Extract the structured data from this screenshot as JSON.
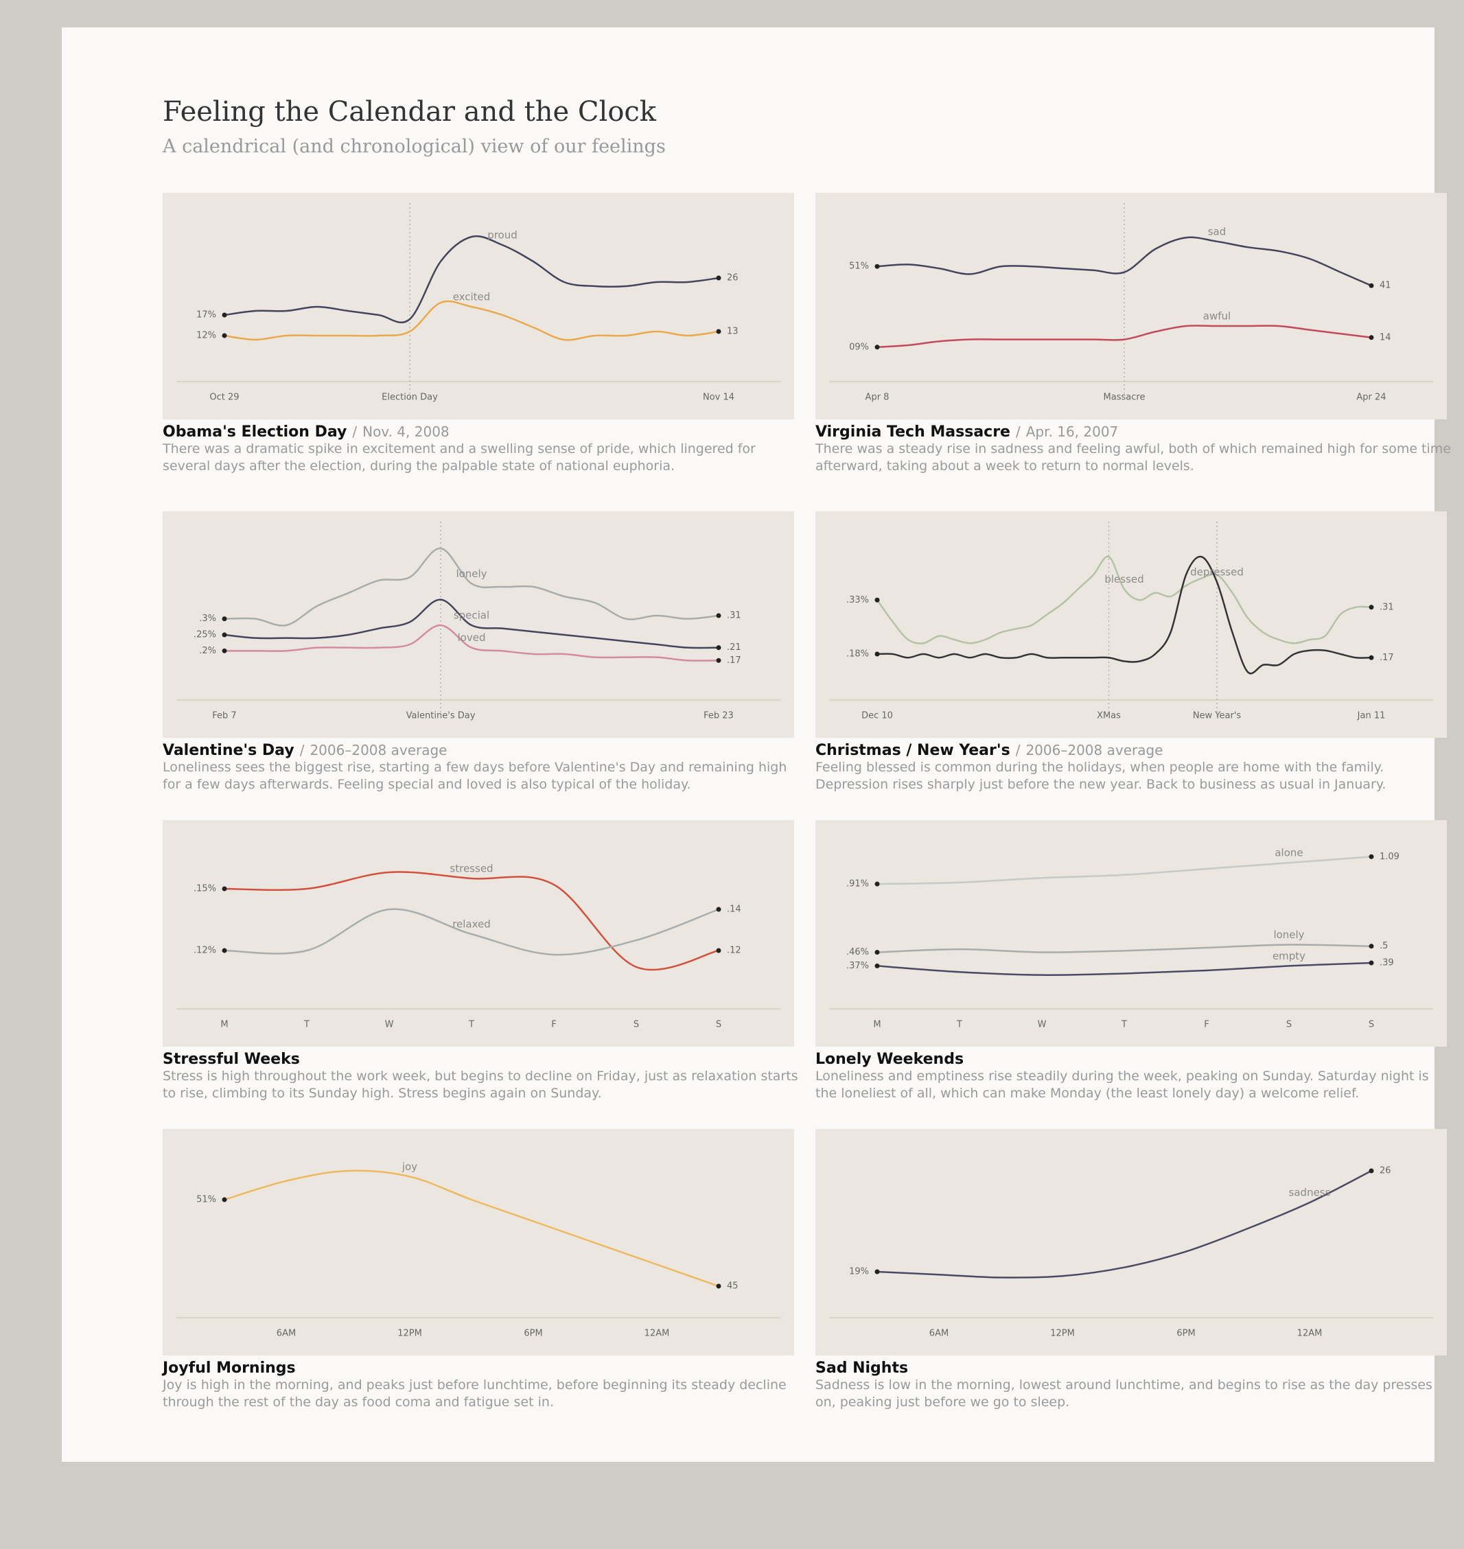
{
  "title": "Feeling the Calendar and the Clock",
  "subtitle": "A calendrical (and chronological) view of our feelings",
  "chart_data": [
    {
      "type": "line",
      "title": "Obama's Election Day",
      "separator": "/",
      "date": "Nov. 4, 2008",
      "description": "There was a dramatic spike in excitement and a swelling sense of pride, which lingered for several days after the election, during the palpable state of national euphoria.",
      "event_lines": true,
      "categories": [
        "Oct 29",
        null,
        null,
        null,
        null,
        null,
        "Election Day",
        null,
        null,
        null,
        null,
        null,
        null,
        null,
        null,
        null,
        "Nov 14"
      ],
      "ylim": [
        5,
        40
      ],
      "series": [
        {
          "name": "proud",
          "color": "#44445e",
          "values": [
            17,
            18,
            18,
            19,
            18,
            17,
            16,
            30,
            36,
            34,
            30,
            25,
            24,
            24,
            25,
            25,
            26
          ],
          "value_labels": [
            "17%",
            null,
            null,
            null,
            null,
            null,
            null,
            null,
            null,
            null,
            null,
            null,
            null,
            null,
            null,
            null,
            "26"
          ]
        },
        {
          "name": "excited",
          "color": "#eaa94c",
          "values": [
            12,
            11,
            12,
            12,
            12,
            12,
            13,
            20,
            19,
            17,
            14,
            11,
            12,
            12,
            13,
            12,
            13
          ],
          "value_labels": [
            "12%",
            null,
            null,
            null,
            null,
            null,
            null,
            null,
            null,
            null,
            null,
            null,
            null,
            null,
            null,
            null,
            "13"
          ]
        }
      ]
    },
    {
      "type": "line",
      "title": "Virginia Tech Massacre",
      "separator": "/",
      "date": "Apr. 16, 2007",
      "description": "There was a steady rise in sadness and feeling awful, both of which remained high for some time afterward, taking about a week to return to normal levels.",
      "event_lines": true,
      "categories": [
        "Apr 8",
        null,
        null,
        null,
        null,
        null,
        null,
        null,
        "Massacre",
        null,
        null,
        null,
        null,
        null,
        null,
        null,
        "Apr 24"
      ],
      "ylim": [
        0,
        75
      ],
      "series": [
        {
          "name": "sad",
          "color": "#44445e",
          "values": [
            51,
            52,
            50,
            47,
            51,
            51,
            50,
            49,
            48,
            60,
            66,
            64,
            61,
            59,
            55,
            48,
            41
          ],
          "value_labels": [
            "51%",
            null,
            null,
            null,
            null,
            null,
            null,
            null,
            null,
            null,
            null,
            null,
            null,
            null,
            null,
            null,
            "41"
          ]
        },
        {
          "name": "awful",
          "color": "#c24a5c",
          "values": [
            9,
            10,
            12,
            13,
            13,
            13,
            13,
            13,
            13,
            17,
            20,
            20,
            20,
            20,
            18,
            16,
            14
          ],
          "value_labels": [
            "09%",
            null,
            null,
            null,
            null,
            null,
            null,
            null,
            null,
            null,
            null,
            null,
            null,
            null,
            null,
            null,
            "14"
          ]
        }
      ]
    },
    {
      "type": "line",
      "title": "Valentine's Day",
      "separator": "/",
      "date": "2006–2008 average",
      "description": "Loneliness sees the biggest rise, starting a few days before Valentine's Day and remaining high for a few days afterwards. Feeling special and loved is also typical of the holiday.",
      "event_lines": true,
      "categories": [
        "Feb 7",
        null,
        null,
        null,
        null,
        null,
        null,
        "Valentine's Day",
        null,
        null,
        null,
        null,
        null,
        null,
        null,
        null,
        "Feb 23"
      ],
      "ylim": [
        0.1,
        0.55
      ],
      "series": [
        {
          "name": "lonely",
          "color": "#a8acac",
          "values": [
            0.3,
            0.3,
            0.28,
            0.34,
            0.38,
            0.42,
            0.43,
            0.52,
            0.41,
            0.4,
            0.4,
            0.37,
            0.35,
            0.3,
            0.31,
            0.3,
            0.31
          ],
          "value_labels": [
            ".3%",
            null,
            null,
            null,
            null,
            null,
            null,
            null,
            null,
            null,
            null,
            null,
            null,
            null,
            null,
            null,
            ".31"
          ]
        },
        {
          "name": "special",
          "color": "#44445e",
          "values": [
            0.25,
            0.24,
            0.24,
            0.24,
            0.25,
            0.27,
            0.29,
            0.36,
            0.28,
            0.27,
            0.26,
            0.25,
            0.24,
            0.23,
            0.22,
            0.21,
            0.21
          ],
          "value_labels": [
            ".25%",
            null,
            null,
            null,
            null,
            null,
            null,
            null,
            null,
            null,
            null,
            null,
            null,
            null,
            null,
            null,
            ".21"
          ]
        },
        {
          "name": "loved",
          "color": "#d48c9c",
          "values": [
            0.2,
            0.2,
            0.2,
            0.21,
            0.21,
            0.21,
            0.22,
            0.28,
            0.21,
            0.2,
            0.19,
            0.19,
            0.18,
            0.18,
            0.18,
            0.17,
            0.17
          ],
          "value_labels": [
            ".2%",
            null,
            null,
            null,
            null,
            null,
            null,
            null,
            null,
            null,
            null,
            null,
            null,
            null,
            null,
            null,
            ".17"
          ]
        }
      ]
    },
    {
      "type": "line",
      "title": "Christmas / New Year's",
      "separator": "/",
      "date": "2006–2008 average",
      "description": "Feeling blessed is common during the holidays, when people are home with the family. Depression rises sharply just before the new year. Back to business as usual in January.",
      "event_lines": true,
      "categories": [
        "Dec 10",
        null,
        null,
        null,
        null,
        null,
        null,
        null,
        null,
        null,
        null,
        null,
        null,
        null,
        null,
        "XMas",
        null,
        null,
        null,
        null,
        null,
        null,
        "New Year's",
        null,
        null,
        null,
        null,
        null,
        null,
        null,
        null,
        null,
        "Jan 11"
      ],
      "ylim": [
        0.1,
        0.5
      ],
      "series": [
        {
          "name": "blessed",
          "color": "#b6c2a6",
          "values": [
            0.33,
            0.27,
            0.22,
            0.21,
            0.23,
            0.22,
            0.21,
            0.22,
            0.24,
            0.25,
            0.26,
            0.29,
            0.32,
            0.36,
            0.4,
            0.45,
            0.36,
            0.33,
            0.35,
            0.34,
            0.37,
            0.39,
            0.4,
            0.35,
            0.28,
            0.24,
            0.22,
            0.21,
            0.22,
            0.23,
            0.29,
            0.31,
            0.31
          ],
          "value_labels": [
            ".33%",
            null,
            null,
            null,
            null,
            null,
            null,
            null,
            null,
            null,
            null,
            null,
            null,
            null,
            null,
            null,
            null,
            null,
            null,
            null,
            null,
            null,
            null,
            null,
            null,
            null,
            null,
            null,
            null,
            null,
            null,
            null,
            ".31"
          ]
        },
        {
          "name": "depressed",
          "color": "#333338",
          "values": [
            0.18,
            0.18,
            0.17,
            0.18,
            0.17,
            0.18,
            0.17,
            0.18,
            0.17,
            0.17,
            0.18,
            0.17,
            0.17,
            0.17,
            0.17,
            0.17,
            0.16,
            0.16,
            0.18,
            0.24,
            0.4,
            0.45,
            0.38,
            0.24,
            0.13,
            0.15,
            0.15,
            0.18,
            0.19,
            0.19,
            0.18,
            0.17,
            0.17
          ],
          "value_labels": [
            ".18%",
            null,
            null,
            null,
            null,
            null,
            null,
            null,
            null,
            null,
            null,
            null,
            null,
            null,
            null,
            null,
            null,
            null,
            null,
            null,
            null,
            null,
            null,
            null,
            null,
            null,
            null,
            null,
            null,
            null,
            null,
            null,
            ".17"
          ]
        }
      ]
    },
    {
      "type": "line",
      "title": "Stressful Weeks",
      "description": "Stress is high throughout the work week, but begins to decline on Friday, just as relaxation starts to rise, climbing to its Sunday high. Stress begins again on Sunday.",
      "event_lines": false,
      "categories": [
        "M",
        "T",
        "W",
        "T",
        "F",
        "S",
        "S"
      ],
      "ylim": [
        0.1,
        0.17
      ],
      "series": [
        {
          "name": "stressed",
          "color": "#d2503e",
          "values": [
            0.15,
            0.15,
            0.158,
            0.155,
            0.152,
            0.112,
            0.12
          ],
          "value_labels": [
            ".15%",
            null,
            null,
            null,
            null,
            null,
            ".12"
          ]
        },
        {
          "name": "relaxed",
          "color": "#a8aeae",
          "values": [
            0.12,
            0.12,
            0.14,
            0.128,
            0.118,
            0.125,
            0.14
          ],
          "value_labels": [
            ".12%",
            null,
            null,
            null,
            null,
            null,
            ".14"
          ]
        }
      ]
    },
    {
      "type": "line",
      "title": "Lonely Weekends",
      "description": "Loneliness and emptiness rise steadily during the week, peaking on Sunday. Saturday night is the loneliest of all, which can make Monday (the least lonely day) a welcome relief.",
      "event_lines": false,
      "categories": [
        "M",
        "T",
        "W",
        "T",
        "F",
        "S",
        "S"
      ],
      "ylim": [
        0.2,
        1.15
      ],
      "series": [
        {
          "name": "alone",
          "color": "#c6c9c6",
          "values": [
            0.91,
            0.92,
            0.95,
            0.97,
            1.01,
            1.05,
            1.09
          ],
          "value_labels": [
            ".91%",
            null,
            null,
            null,
            null,
            null,
            "1.09"
          ]
        },
        {
          "name": "lonely",
          "color": "#a8acac",
          "values": [
            0.46,
            0.48,
            0.46,
            0.47,
            0.49,
            0.51,
            0.5
          ],
          "value_labels": [
            ".46%",
            null,
            null,
            null,
            null,
            null,
            ".5"
          ]
        },
        {
          "name": "empty",
          "color": "#4a4a66",
          "values": [
            0.37,
            0.33,
            0.31,
            0.32,
            0.34,
            0.37,
            0.39
          ],
          "value_labels": [
            ".37%",
            null,
            null,
            null,
            null,
            null,
            ".39"
          ]
        }
      ]
    },
    {
      "type": "line",
      "title": "Joyful Mornings",
      "description": "Joy is high in the morning, and peaks just before lunchtime, before beginning its steady decline through the rest of the day as food coma and fatigue set in.",
      "event_lines": false,
      "categories": [
        null,
        "6AM",
        null,
        "12PM",
        null,
        "6PM",
        null,
        "12AM",
        null
      ],
      "ylim": [
        44,
        54
      ],
      "series": [
        {
          "name": "joy",
          "color": "#f0b85e",
          "values": [
            51,
            52.3,
            53,
            52.6,
            51,
            49.5,
            48,
            46.5,
            45
          ],
          "value_labels": [
            "51%",
            null,
            null,
            null,
            null,
            null,
            null,
            null,
            "45"
          ]
        }
      ]
    },
    {
      "type": "line",
      "title": "Sad Nights",
      "description": "Sadness is low in the morning, lowest around lunchtime, and begins to rise as the day presses on, peaking just before we go to sleep.",
      "event_lines": false,
      "categories": [
        null,
        "6AM",
        null,
        "12PM",
        null,
        "6PM",
        null,
        "12AM",
        null
      ],
      "ylim": [
        17,
        27
      ],
      "series": [
        {
          "name": "sadness",
          "color": "#4a4a66",
          "values": [
            19,
            18.8,
            18.6,
            18.7,
            19.3,
            20.4,
            22,
            23.8,
            26
          ],
          "value_labels": [
            "19%",
            null,
            null,
            null,
            null,
            null,
            null,
            null,
            "26"
          ]
        }
      ]
    }
  ]
}
